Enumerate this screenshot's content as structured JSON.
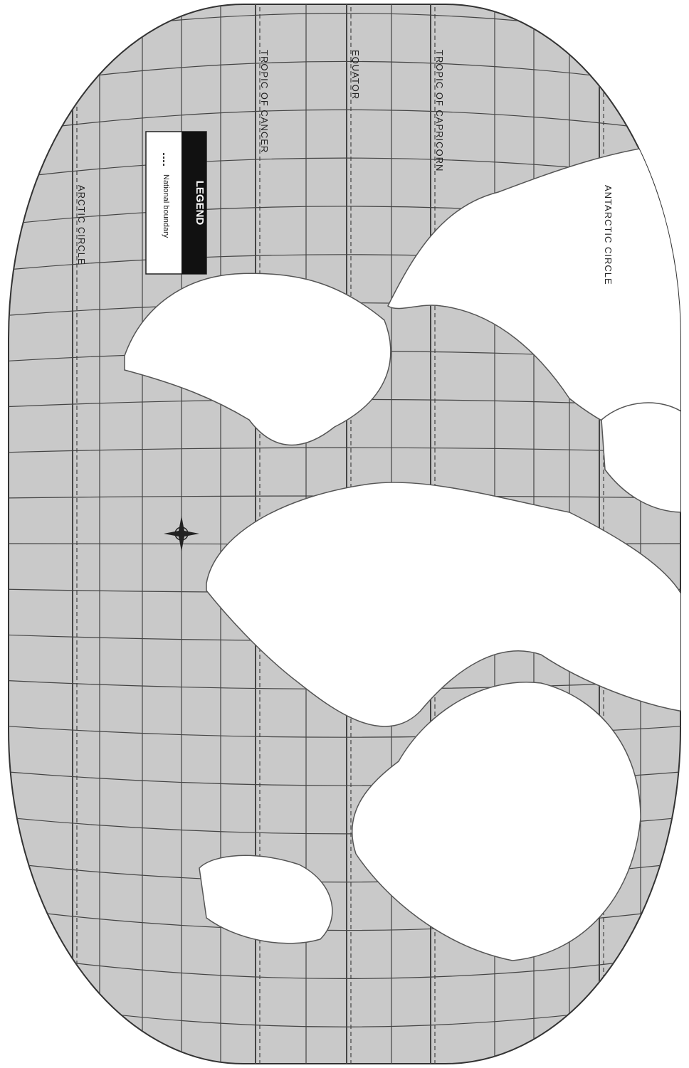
{
  "legend": {
    "title": "LEGEND",
    "items": [
      "National boundary"
    ]
  },
  "parallels": [
    "ARCTIC CIRCLE",
    "TROPIC OF CANCER",
    "EQUATOR",
    "TROPIC OF CAPRICORN",
    "ANTARCTIC CIRCLE"
  ]
}
